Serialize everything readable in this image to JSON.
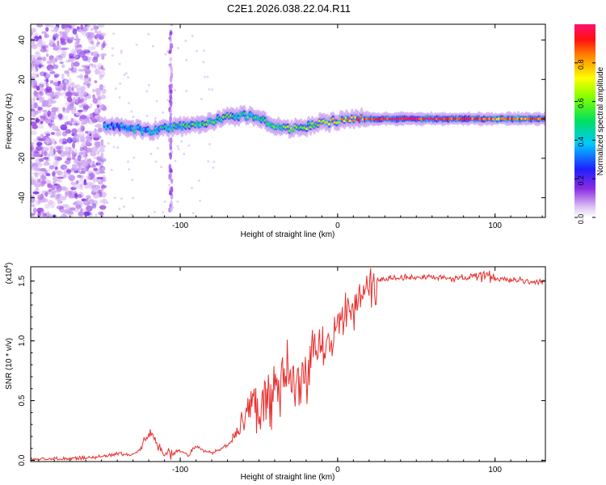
{
  "title": "C2E1.2026.038.22.04.R11",
  "colors": {
    "line": "#e8302e",
    "axis": "#000000",
    "tick_label": "#000000"
  },
  "chart_data": [
    {
      "type": "heatmap",
      "xlabel": "Height of straight line (km)",
      "ylabel": "Frequency (Hz)",
      "xlim": [
        -195,
        132
      ],
      "ylim": [
        -50,
        48
      ],
      "xticks": [
        -100,
        0,
        100
      ],
      "xtick_labels": [
        "-100",
        "0",
        "100"
      ],
      "yticks": [
        -40,
        -20,
        0,
        20,
        40
      ],
      "ytick_labels": [
        "-40",
        "-20",
        "0",
        "20",
        "40"
      ],
      "noise_region_end_km": -148,
      "noise_stripe_km": -106,
      "ridge": {
        "x": [
          -148,
          -140,
          -130,
          -120,
          -110,
          -100,
          -90,
          -80,
          -70,
          -60,
          -50,
          -40,
          -30,
          -20,
          -10,
          0,
          10,
          20,
          40,
          60,
          80,
          100,
          132
        ],
        "frequency": [
          -3,
          -4,
          -5,
          -6,
          -5,
          -4,
          -3,
          -1,
          1,
          2,
          0,
          -3,
          -5,
          -4,
          -2,
          -1,
          0,
          0,
          0,
          0,
          0,
          0,
          0
        ],
        "amplitude": [
          0.3,
          0.35,
          0.4,
          0.4,
          0.45,
          0.45,
          0.5,
          0.5,
          0.55,
          0.5,
          0.5,
          0.5,
          0.55,
          0.6,
          0.65,
          0.7,
          0.8,
          0.9,
          0.95,
          0.95,
          0.9,
          0.85,
          0.8
        ]
      },
      "colorbar": {
        "label": "Normalized spectral amplitude",
        "range": [
          0,
          1
        ],
        "ticks": [
          0.0,
          0.2,
          0.4,
          0.6,
          0.8
        ],
        "tick_labels": [
          "0.0",
          "0.2",
          "0.4",
          "0.6",
          "0.8"
        ]
      }
    },
    {
      "type": "line",
      "xlabel": "Height of straight line (km)",
      "ylabel": "SNR (10 * v/v)",
      "multiplier": "(x10",
      "multiplier_exp": "4",
      "multiplier_close": ")",
      "xlim": [
        -195,
        132
      ],
      "ylim": [
        -0.01,
        1.62
      ],
      "xticks": [
        -100,
        0,
        100
      ],
      "xtick_labels": [
        "-100",
        "0",
        "100"
      ],
      "yticks": [
        0.0,
        0.5,
        1.0,
        1.5
      ],
      "ytick_labels": [
        "0.0",
        "0.5",
        "1.0",
        "1.5"
      ],
      "series": [
        {
          "name": "SNR",
          "x": [
            -195,
            -180,
            -160,
            -150,
            -145,
            -140,
            -135,
            -130,
            -125,
            -120,
            -118,
            -115,
            -112,
            -110,
            -108,
            -105,
            -100,
            -95,
            -90,
            -85,
            -80,
            -75,
            -70,
            -65,
            -60,
            -55,
            -50,
            -45,
            -40,
            -35,
            -30,
            -25,
            -20,
            -15,
            -10,
            -5,
            0,
            5,
            10,
            15,
            20,
            25,
            30,
            35,
            40,
            50,
            60,
            70,
            80,
            90,
            95,
            100,
            110,
            120,
            132
          ],
          "y": [
            0.01,
            0.01,
            0.02,
            0.03,
            0.04,
            0.06,
            0.05,
            0.05,
            0.1,
            0.2,
            0.22,
            0.15,
            0.08,
            0.05,
            0.07,
            0.05,
            0.09,
            0.04,
            0.12,
            0.08,
            0.06,
            0.1,
            0.12,
            0.2,
            0.35,
            0.45,
            0.45,
            0.55,
            0.6,
            0.65,
            0.62,
            0.55,
            0.75,
            0.85,
            0.95,
            1.0,
            1.12,
            1.22,
            1.3,
            1.4,
            1.47,
            1.5,
            1.52,
            1.52,
            1.53,
            1.53,
            1.53,
            1.52,
            1.53,
            1.53,
            1.56,
            1.52,
            1.51,
            1.5,
            1.49
          ]
        }
      ]
    }
  ]
}
